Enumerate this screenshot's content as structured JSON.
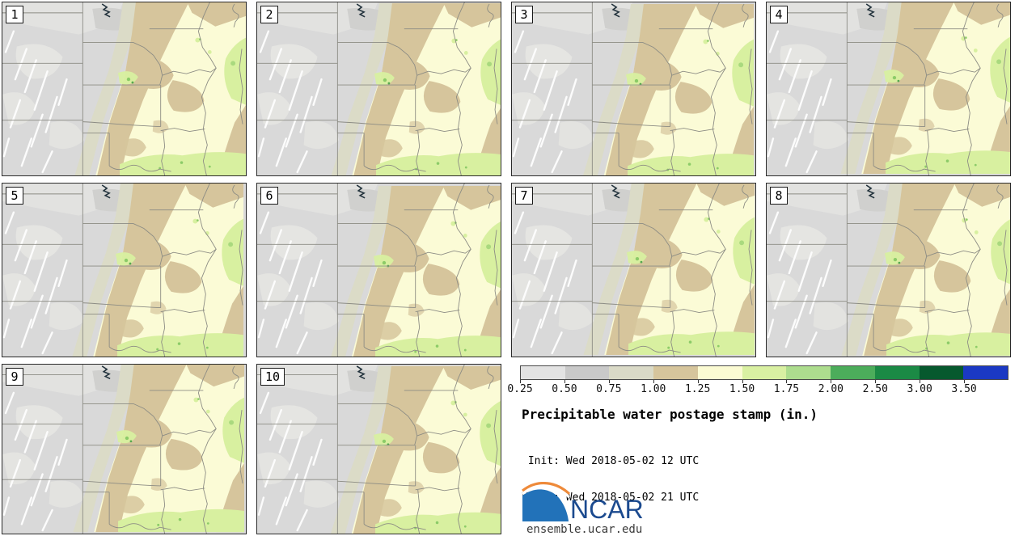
{
  "figure": {
    "title": "Precipitable water postage stamp (in.)",
    "init_line": " Init: Wed 2018-05-02 12 UTC",
    "valid_line": "Valid: Wed 2018-05-02 21 UTC",
    "logo_text": "NCAR",
    "site": "ensemble.ucar.edu"
  },
  "panels": [
    {
      "label": "1"
    },
    {
      "label": "2"
    },
    {
      "label": "3"
    },
    {
      "label": "4"
    },
    {
      "label": "5"
    },
    {
      "label": "6"
    },
    {
      "label": "7"
    },
    {
      "label": "8"
    },
    {
      "label": "9"
    },
    {
      "label": "10"
    }
  ],
  "colorbar": {
    "tick_labels": [
      "0.25",
      "0.50",
      "0.75",
      "1.00",
      "1.25",
      "1.50",
      "1.75",
      "2.00",
      "2.50",
      "3.00",
      "3.50"
    ],
    "segment_colors": [
      "#e3e3e3",
      "#c9c9c9",
      "#dadac7",
      "#d6c59c",
      "#fbfbd3",
      "#d9f0a2",
      "#addd8e",
      "#4cad5b",
      "#1b8a45",
      "#06592e",
      "#1b39c4"
    ]
  },
  "map_palette": {
    "dry_gray": "#d9d9d9",
    "below_min_white": "#ffffff",
    "transition_khaki": "#dbdbc7",
    "tan_band": "#d6c59c",
    "cream_plume": "#fbfbd6",
    "light_green": "#d8f0a0",
    "medium_green": "#8ccb68",
    "state_border": "#8c8c84",
    "logo_blue": "#2272b9",
    "logo_orange": "#ee8a3a"
  }
}
